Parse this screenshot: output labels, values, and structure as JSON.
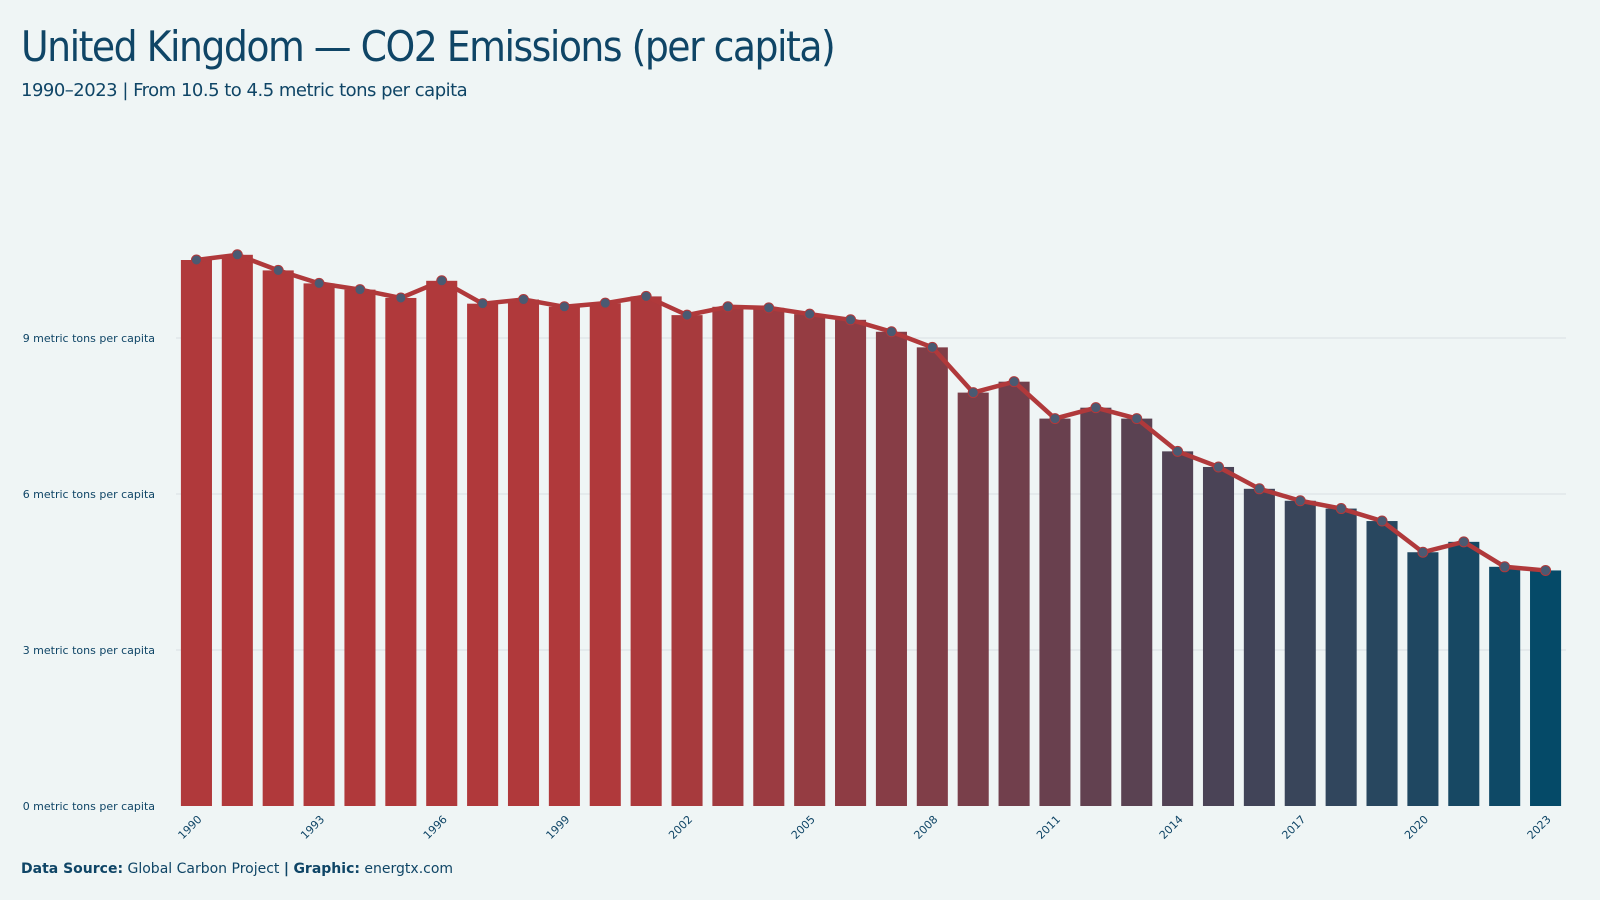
{
  "title": "United Kingdom — CO2 Emissions (per capita)",
  "subtitle": "1990–2023 | From 10.5 to 4.5 metric tons per capita",
  "footer": {
    "source_label": "Data Source:",
    "source_value": "Global Carbon Project",
    "separator": "|",
    "graphic_label": "Graphic:",
    "graphic_value": "energtx.com"
  },
  "colors": {
    "start": "#b0393b",
    "end": "#054a68",
    "line": "#b0393b",
    "marker": "#4a5a72",
    "grid": "#d8dfe2",
    "text": "#0f4566"
  },
  "chart_data": {
    "type": "bar",
    "title": "United Kingdom — CO2 Emissions (per capita)",
    "subtitle": "1990–2023 | From 10.5 to 4.5 metric tons per capita",
    "xlabel": "",
    "ylabel": "",
    "ylim": [
      0,
      12
    ],
    "yticks": [
      0,
      3,
      6,
      9
    ],
    "ytick_labels": [
      "0 metric tons per capita",
      "3 metric tons per capita",
      "6 metric tons per capita",
      "9 metric tons per capita"
    ],
    "xtick_labels": [
      "1990",
      "1993",
      "1996",
      "1999",
      "2002",
      "2005",
      "2008",
      "2011",
      "2014",
      "2017",
      "2020",
      "2023"
    ],
    "grid": true,
    "legend": "none",
    "categories": [
      "1990",
      "1991",
      "1992",
      "1993",
      "1994",
      "1995",
      "1996",
      "1997",
      "1998",
      "1999",
      "2000",
      "2001",
      "2002",
      "2003",
      "2004",
      "2005",
      "2006",
      "2007",
      "2008",
      "2009",
      "2010",
      "2011",
      "2012",
      "2013",
      "2014",
      "2015",
      "2016",
      "2017",
      "2018",
      "2019",
      "2020",
      "2021",
      "2022",
      "2023"
    ],
    "values": [
      10.5,
      10.6,
      10.3,
      10.05,
      9.93,
      9.77,
      10.1,
      9.66,
      9.74,
      9.6,
      9.67,
      9.8,
      9.44,
      9.6,
      9.58,
      9.46,
      9.35,
      9.12,
      8.82,
      7.95,
      8.16,
      7.45,
      7.66,
      7.45,
      6.82,
      6.52,
      6.1,
      5.87,
      5.72,
      5.48,
      4.88,
      5.08,
      4.6,
      4.53
    ]
  }
}
